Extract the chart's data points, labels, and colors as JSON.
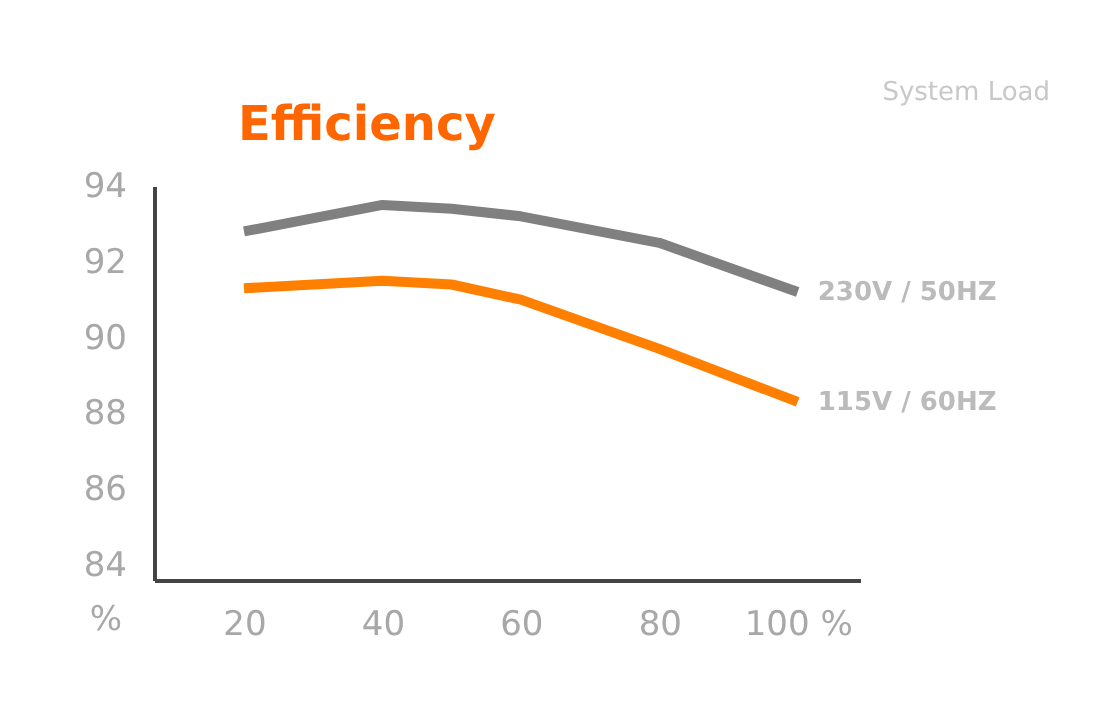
{
  "chart_data": {
    "type": "line",
    "title": "Efficiency",
    "xlabel": "System Load",
    "annotations": [
      "%"
    ],
    "x": [
      20,
      40,
      50,
      60,
      80,
      100
    ],
    "series": [
      {
        "name": "230V / 50HZ",
        "color": "#808080",
        "values": [
          92.8,
          93.5,
          93.4,
          93.2,
          92.5,
          91.2
        ]
      },
      {
        "name": "115V / 60HZ",
        "color": "#ff8000",
        "values": [
          91.3,
          91.5,
          91.4,
          91.0,
          89.7,
          88.3
        ]
      }
    ],
    "xlim": [
      7,
      109
    ],
    "ylim": [
      83.6,
      94
    ],
    "xticks": [
      20,
      40,
      60,
      80,
      {
        "value": 100,
        "label": "100 %"
      }
    ],
    "yticks": [
      84,
      86,
      88,
      90,
      92,
      94
    ],
    "grid": false,
    "legend": false,
    "marker": "none",
    "line_style": "solid"
  }
}
